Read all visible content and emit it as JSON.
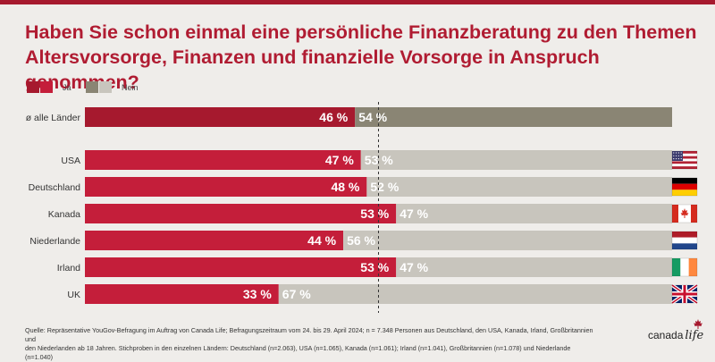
{
  "colors": {
    "ja_primary": "#a6192e",
    "ja_secondary": "#c41e3a",
    "nein_primary": "#8a8574",
    "nein_secondary": "#c8c5bd",
    "background": "#efedea"
  },
  "legend": {
    "ja_label": "Ja",
    "nein_label": "Nein"
  },
  "chart_data": {
    "type": "bar",
    "orientation": "horizontal",
    "stacked": true,
    "title": "Haben Sie schon einmal eine persönliche Finanzberatung zu den Themen Altersvorsorge, Finanzen und finanzielle Vorsorge in Anspruch genommen?",
    "categories": [
      "ø alle Länder",
      "USA",
      "Deutschland",
      "Kanada",
      "Niederlande",
      "Irland",
      "UK"
    ],
    "series": [
      {
        "name": "Ja",
        "values": [
          46,
          47,
          48,
          53,
          44,
          53,
          33
        ]
      },
      {
        "name": "Nein",
        "values": [
          54,
          53,
          52,
          47,
          56,
          47,
          67
        ]
      }
    ],
    "value_labels": {
      "ja": [
        "46 %",
        "47 %",
        "48 %",
        "53 %",
        "44 %",
        "53 %",
        "33 %"
      ],
      "nein": [
        "54 %",
        "53 %",
        "52 %",
        "47 %",
        "56 %",
        "47 %",
        "67 %"
      ]
    },
    "flags": [
      null,
      "usa-flag-icon",
      "germany-flag-icon",
      "canada-flag-icon",
      "netherlands-flag-icon",
      "ireland-flag-icon",
      "uk-flag-icon"
    ],
    "xlim": [
      0,
      100
    ],
    "reference_line": 50,
    "legend_position": "top-left"
  },
  "footnote": {
    "line1": "Quelle: Repräsentative YouGov-Befragung im Auftrag von Canada Life; Befragungszeitraum vom 24. bis 29. April 2024; n = 7.348 Personen aus Deutschland, den USA, Kanada, Irland, Großbritannien und",
    "line2": "den Niederlanden ab 18 Jahren. Stichproben in den einzelnen Ländern: Deutschland (n=2.063), USA (n=1.065), Kanada (n=1.061); Irland (n=1.041), Großbritannien (n=1.078) und Niederlande (n=1.040)"
  },
  "logo": {
    "word1": "canada",
    "word2": "life"
  }
}
